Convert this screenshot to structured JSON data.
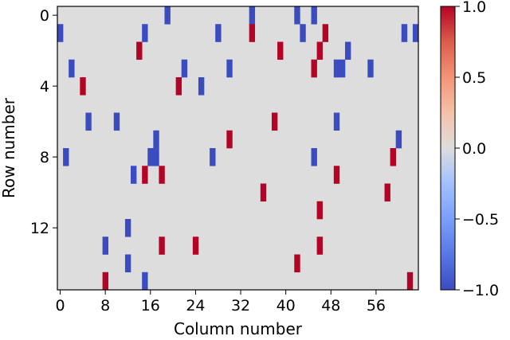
{
  "chart_data": {
    "type": "heatmap",
    "title": "",
    "xlabel": "Column number",
    "ylabel": "Row number",
    "n_cols": 64,
    "n_rows": 16,
    "x_ticks": [
      0,
      8,
      16,
      24,
      32,
      40,
      48,
      56
    ],
    "y_ticks": [
      0,
      4,
      8,
      12
    ],
    "colorbar": {
      "ticks": [
        1.0,
        0.5,
        0.0,
        -0.5,
        -1.0
      ],
      "tick_labels": [
        "1.0",
        "0.5",
        "0.0",
        "−0.5",
        "−1.0"
      ],
      "range": [
        -1.0,
        1.0
      ],
      "colormap": "coolwarm"
    },
    "colors": {
      "positive": "#b40426",
      "negative": "#3b4cc0",
      "zero": "#dddddd"
    },
    "cells": [
      {
        "row": 0,
        "col": 19,
        "value": -1
      },
      {
        "row": 0,
        "col": 34,
        "value": -1
      },
      {
        "row": 0,
        "col": 42,
        "value": -1
      },
      {
        "row": 0,
        "col": 45,
        "value": -1
      },
      {
        "row": 1,
        "col": 0,
        "value": -1
      },
      {
        "row": 1,
        "col": 15,
        "value": -1
      },
      {
        "row": 1,
        "col": 28,
        "value": -1
      },
      {
        "row": 1,
        "col": 34,
        "value": 1
      },
      {
        "row": 1,
        "col": 43,
        "value": -1
      },
      {
        "row": 1,
        "col": 47,
        "value": 1
      },
      {
        "row": 1,
        "col": 61,
        "value": -1
      },
      {
        "row": 1,
        "col": 63,
        "value": -1
      },
      {
        "row": 2,
        "col": 14,
        "value": 1
      },
      {
        "row": 2,
        "col": 39,
        "value": 1
      },
      {
        "row": 2,
        "col": 46,
        "value": 1
      },
      {
        "row": 2,
        "col": 51,
        "value": -1
      },
      {
        "row": 3,
        "col": 2,
        "value": -1
      },
      {
        "row": 3,
        "col": 22,
        "value": -1
      },
      {
        "row": 3,
        "col": 30,
        "value": -1
      },
      {
        "row": 3,
        "col": 45,
        "value": 1
      },
      {
        "row": 3,
        "col": 49,
        "value": -1
      },
      {
        "row": 3,
        "col": 50,
        "value": -1
      },
      {
        "row": 3,
        "col": 55,
        "value": -1
      },
      {
        "row": 4,
        "col": 4,
        "value": 1
      },
      {
        "row": 4,
        "col": 21,
        "value": 1
      },
      {
        "row": 4,
        "col": 25,
        "value": -1
      },
      {
        "row": 6,
        "col": 5,
        "value": -1
      },
      {
        "row": 6,
        "col": 10,
        "value": -1
      },
      {
        "row": 6,
        "col": 38,
        "value": 1
      },
      {
        "row": 6,
        "col": 49,
        "value": -1
      },
      {
        "row": 7,
        "col": 17,
        "value": -1
      },
      {
        "row": 7,
        "col": 30,
        "value": 1
      },
      {
        "row": 7,
        "col": 60,
        "value": -1
      },
      {
        "row": 8,
        "col": 1,
        "value": -1
      },
      {
        "row": 8,
        "col": 16,
        "value": -1
      },
      {
        "row": 8,
        "col": 17,
        "value": -1
      },
      {
        "row": 8,
        "col": 27,
        "value": -1
      },
      {
        "row": 8,
        "col": 45,
        "value": -1
      },
      {
        "row": 8,
        "col": 59,
        "value": 1
      },
      {
        "row": 9,
        "col": 13,
        "value": -1
      },
      {
        "row": 9,
        "col": 15,
        "value": 1
      },
      {
        "row": 9,
        "col": 18,
        "value": 1
      },
      {
        "row": 9,
        "col": 49,
        "value": 1
      },
      {
        "row": 10,
        "col": 36,
        "value": 1
      },
      {
        "row": 10,
        "col": 58,
        "value": 1
      },
      {
        "row": 11,
        "col": 46,
        "value": 1
      },
      {
        "row": 12,
        "col": 12,
        "value": -1
      },
      {
        "row": 13,
        "col": 8,
        "value": -1
      },
      {
        "row": 13,
        "col": 18,
        "value": 1
      },
      {
        "row": 13,
        "col": 24,
        "value": 1
      },
      {
        "row": 13,
        "col": 46,
        "value": 1
      },
      {
        "row": 14,
        "col": 12,
        "value": -1
      },
      {
        "row": 14,
        "col": 42,
        "value": 1
      },
      {
        "row": 15,
        "col": 8,
        "value": 1
      },
      {
        "row": 15,
        "col": 15,
        "value": -1
      },
      {
        "row": 15,
        "col": 62,
        "value": 1
      }
    ]
  }
}
